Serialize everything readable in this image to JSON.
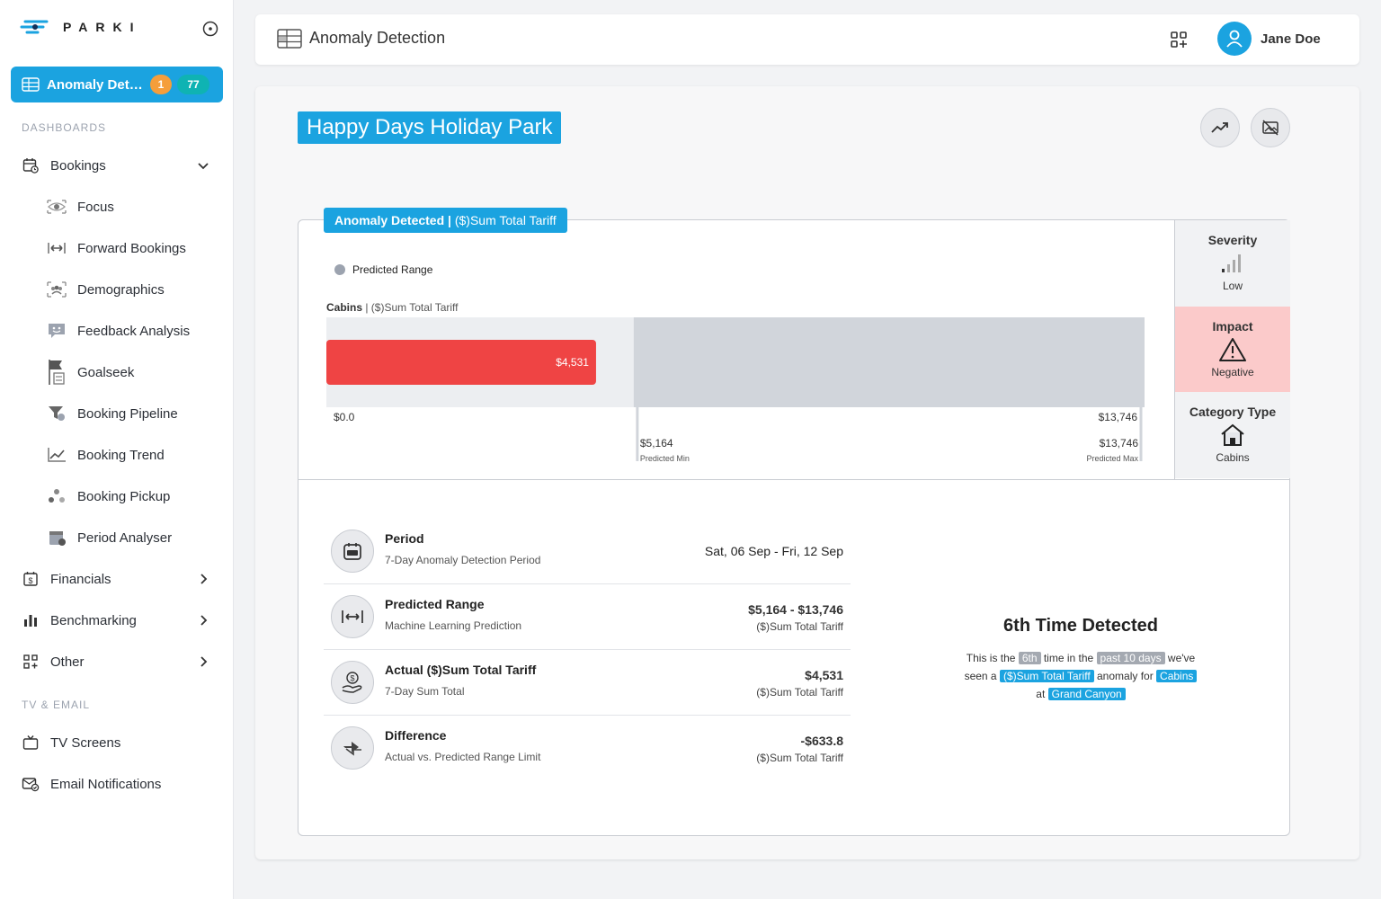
{
  "brand": {
    "logo_text": "PARKI"
  },
  "sidebar": {
    "active": {
      "label": "Anomaly Detection",
      "badge_orange": "1",
      "badge_teal": "77"
    },
    "section_dashboards": "DASHBOARDS",
    "bookings_label": "Bookings",
    "sub_items": [
      "Focus",
      "Forward Bookings",
      "Demographics",
      "Feedback Analysis",
      "Goalseek",
      "Booking Pipeline",
      "Booking Trend",
      "Booking Pickup",
      "Period Analyser"
    ],
    "financials_label": "Financials",
    "benchmarking_label": "Benchmarking",
    "other_label": "Other",
    "section_tv": "TV & EMAIL",
    "tv_label": "TV Screens",
    "email_label": "Email Notifications"
  },
  "topbar": {
    "title": "Anomaly Detection",
    "user_name": "Jane Doe"
  },
  "main": {
    "park_title": "Happy Days Holiday Park",
    "panel_tag_bold": "Anomaly Detected |",
    "panel_tag_rest": " ($)Sum Total Tariff",
    "legend_label": "Predicted Range",
    "chart_label_bold": "Cabins",
    "chart_label_rest": " | ($)Sum Total Tariff"
  },
  "chart_data": {
    "type": "bar",
    "categories": [
      "Cabins"
    ],
    "values": [
      4531
    ],
    "value_label": "$4,531",
    "predicted_min": 5164,
    "predicted_max": 13746,
    "predicted_min_label": "$5,164",
    "predicted_max_label": "$13,746",
    "predicted_min_caption": "Predicted Min",
    "predicted_max_caption": "Predicted Max",
    "axis_min_label": "$0.0",
    "axis_max_label": "$13,746",
    "xlim": [
      0,
      13746
    ],
    "bar_color": "#ef4444",
    "range_color": "#d1d5db"
  },
  "side": {
    "severity_header": "Severity",
    "severity_value": "Low",
    "impact_header": "Impact",
    "impact_value": "Negative",
    "category_header": "Category Type",
    "category_value": "Cabins",
    "impact_bg": "#fbcaca"
  },
  "details": {
    "period": {
      "title": "Period",
      "sub": "7-Day Anomaly Detection Period",
      "value": "Sat, 06 Sep - Fri, 12 Sep"
    },
    "predicted": {
      "title": "Predicted Range",
      "sub": "Machine Learning Prediction",
      "value": "$5,164 - $13,746",
      "value_sub": "($)Sum Total Tariff"
    },
    "actual": {
      "title": "Actual ($)Sum Total Tariff",
      "sub": "7-Day Sum Total",
      "value": "$4,531",
      "value_sub": "($)Sum Total Tariff"
    },
    "difference": {
      "title": "Difference",
      "sub": "Actual vs. Predicted Range Limit",
      "value": "-$633.8",
      "value_sub": "($)Sum Total Tariff"
    }
  },
  "detected": {
    "heading": "6th Time Detected",
    "t1": "This is the ",
    "h1": "6th",
    "t2": " time in the ",
    "h2": "past 10 days",
    "t3": " we've",
    "t4": "seen a ",
    "h3": "($)Sum Total Tariff",
    "t5": " anomaly for ",
    "h4": "Cabins",
    "t6": "at ",
    "h5": "Grand Canyon"
  },
  "colors": {
    "accent": "#1ba3e0",
    "orange": "#f59e3b",
    "teal": "#0fb3b3"
  }
}
